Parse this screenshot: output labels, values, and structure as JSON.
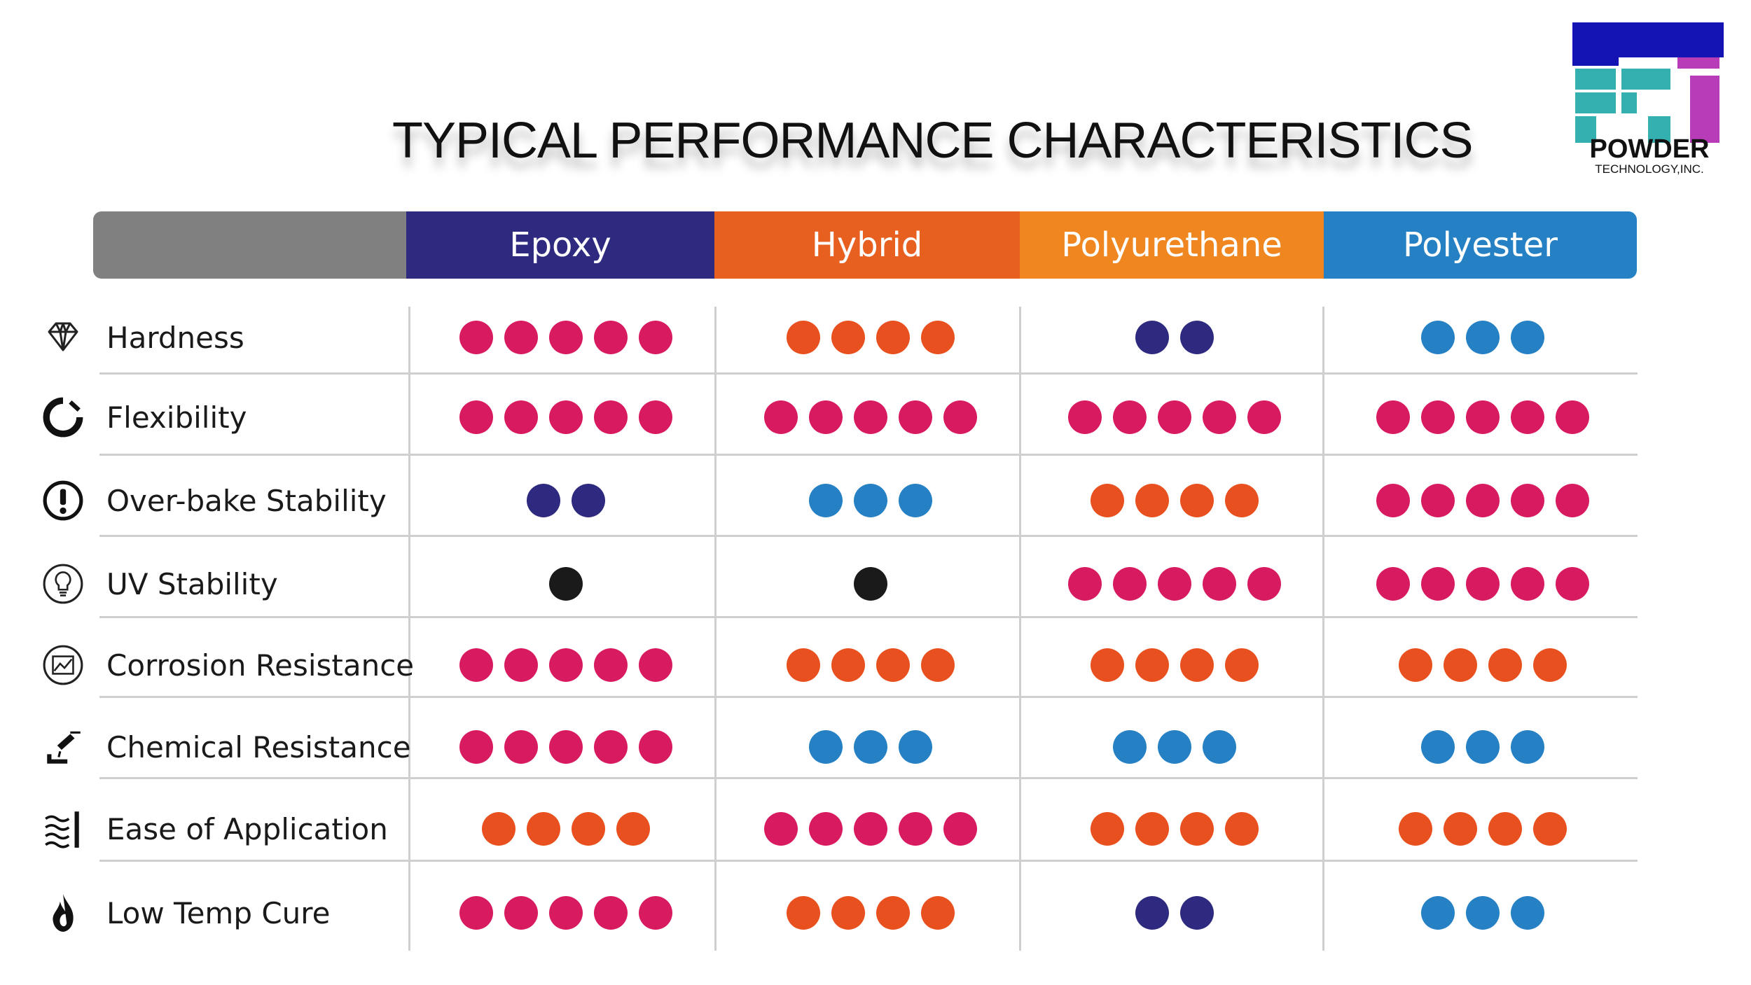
{
  "title": "TYPICAL PERFORMANCE CHARACTERISTICS",
  "logo": {
    "name": "POWDER",
    "sub": "TECHNOLOGY,INC."
  },
  "colors": {
    "magenta": "#d81b60",
    "orange": "#e8501f",
    "navy": "#2e2a7f",
    "blue": "#2581c4",
    "black": "#1a1a1a"
  },
  "chart_data": {
    "type": "table",
    "title": "TYPICAL PERFORMANCE CHARACTERISTICS",
    "columns": [
      {
        "name": "Epoxy",
        "color": "#2e2a7f"
      },
      {
        "name": "Hybrid",
        "color": "#e8601f"
      },
      {
        "name": "Polyurethane",
        "color": "#f0861f"
      },
      {
        "name": "Polyester",
        "color": "#2581c4"
      }
    ],
    "rows": [
      {
        "label": "Hardness",
        "icon": "diamond-icon",
        "cells": [
          {
            "dots": 5,
            "color": "magenta"
          },
          {
            "dots": 4,
            "color": "orange"
          },
          {
            "dots": 2,
            "color": "navy"
          },
          {
            "dots": 3,
            "color": "blue"
          }
        ]
      },
      {
        "label": "Flexibility",
        "icon": "flexibility-ring-icon",
        "cells": [
          {
            "dots": 5,
            "color": "magenta"
          },
          {
            "dots": 5,
            "color": "magenta"
          },
          {
            "dots": 5,
            "color": "magenta"
          },
          {
            "dots": 5,
            "color": "magenta"
          }
        ]
      },
      {
        "label": "Over-bake Stability",
        "icon": "exclamation-circle-icon",
        "cells": [
          {
            "dots": 2,
            "color": "navy"
          },
          {
            "dots": 3,
            "color": "blue"
          },
          {
            "dots": 4,
            "color": "orange"
          },
          {
            "dots": 5,
            "color": "magenta"
          }
        ]
      },
      {
        "label": "UV Stability",
        "icon": "lightbulb-icon",
        "cells": [
          {
            "dots": 1,
            "color": "black"
          },
          {
            "dots": 1,
            "color": "black"
          },
          {
            "dots": 5,
            "color": "magenta"
          },
          {
            "dots": 5,
            "color": "magenta"
          }
        ]
      },
      {
        "label": "Corrosion Resistance",
        "icon": "corrosion-icon",
        "cells": [
          {
            "dots": 5,
            "color": "magenta"
          },
          {
            "dots": 4,
            "color": "orange"
          },
          {
            "dots": 4,
            "color": "orange"
          },
          {
            "dots": 4,
            "color": "orange"
          }
        ]
      },
      {
        "label": "Chemical Resistance",
        "icon": "chemical-pour-icon",
        "cells": [
          {
            "dots": 5,
            "color": "magenta"
          },
          {
            "dots": 3,
            "color": "blue"
          },
          {
            "dots": 3,
            "color": "blue"
          },
          {
            "dots": 3,
            "color": "blue"
          }
        ]
      },
      {
        "label": "Ease of Application",
        "icon": "waves-icon",
        "cells": [
          {
            "dots": 4,
            "color": "orange"
          },
          {
            "dots": 5,
            "color": "magenta"
          },
          {
            "dots": 4,
            "color": "orange"
          },
          {
            "dots": 4,
            "color": "orange"
          }
        ]
      },
      {
        "label": "Low Temp Cure",
        "icon": "flame-icon",
        "cells": [
          {
            "dots": 5,
            "color": "magenta"
          },
          {
            "dots": 4,
            "color": "orange"
          },
          {
            "dots": 2,
            "color": "navy"
          },
          {
            "dots": 3,
            "color": "blue"
          }
        ]
      }
    ]
  }
}
